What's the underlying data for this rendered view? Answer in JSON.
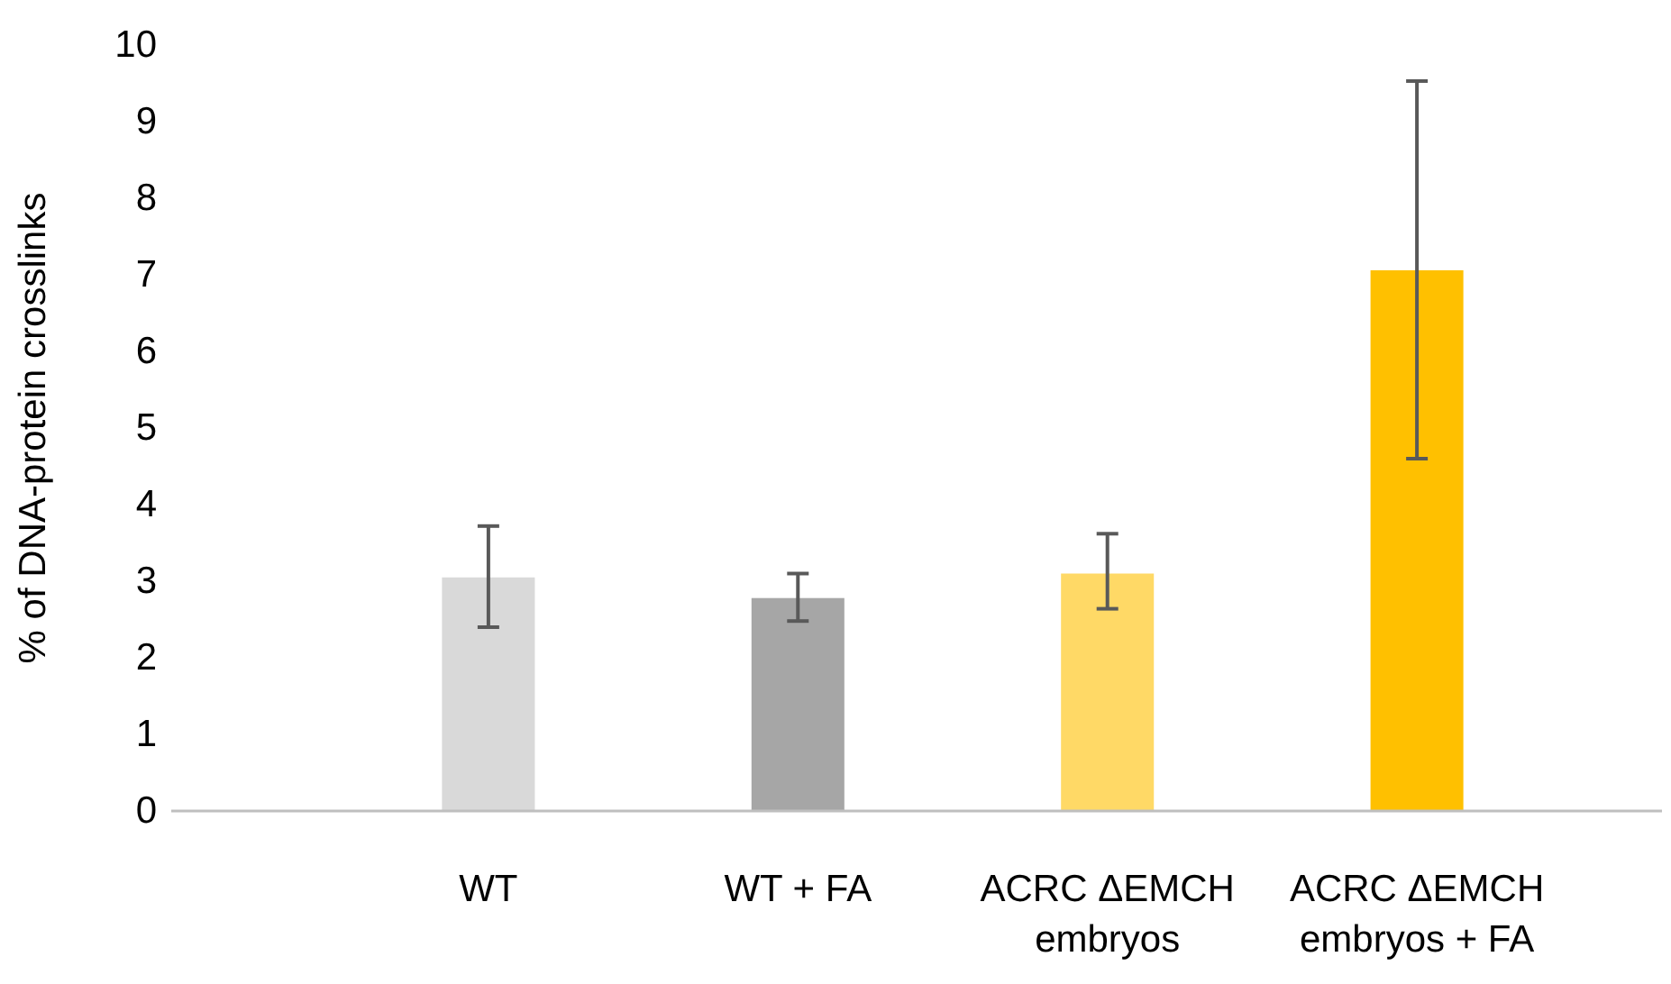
{
  "chart_data": {
    "type": "bar",
    "ylabel": "% of DNA-protein crosslinks",
    "categories": [
      "WT",
      "WT + FA",
      "ACRC ΔEMCH embryos",
      "ACRC ΔEMCH embryos + FA"
    ],
    "values": [
      3.05,
      2.78,
      3.1,
      7.06
    ],
    "colors": [
      "#d9d9d9",
      "#a6a6a6",
      "#ffd966",
      "#ffc000"
    ],
    "errors": [
      [
        2.4,
        3.72
      ],
      [
        2.48,
        3.1
      ],
      [
        2.64,
        3.62
      ],
      [
        4.6,
        9.53
      ]
    ],
    "ylim": [
      0,
      10
    ],
    "yticks": [
      0,
      1,
      2,
      3,
      4,
      5,
      6,
      7,
      8,
      9,
      10
    ],
    "grid": false
  }
}
